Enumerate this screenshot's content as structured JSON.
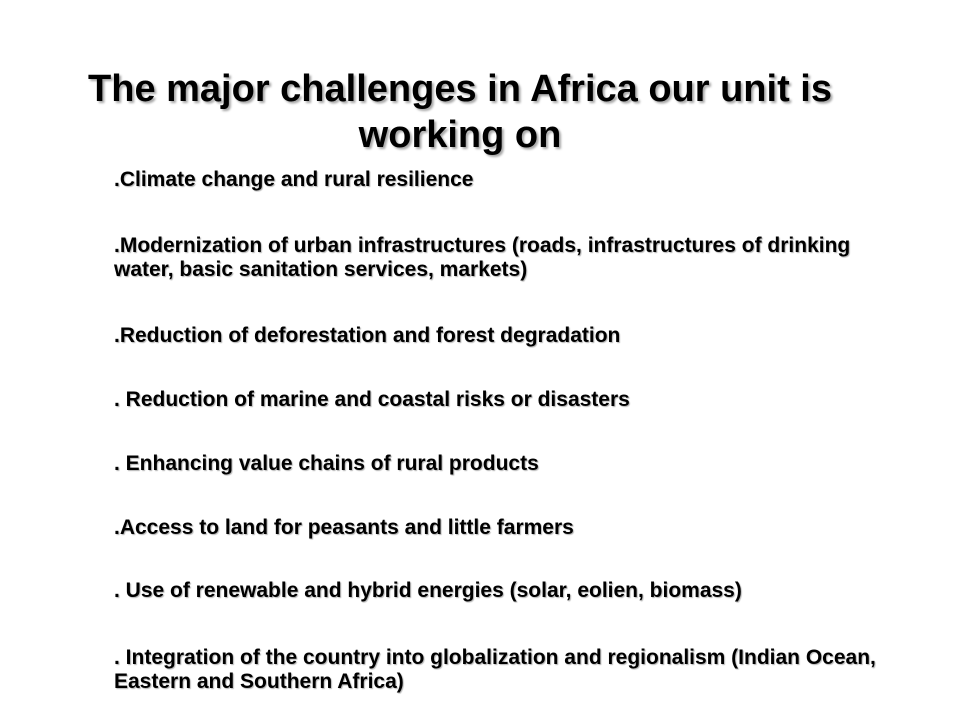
{
  "slide": {
    "title": "The major challenges in Africa our unit is working on",
    "items": [
      ".Climate change and rural resilience",
      ".Modernization of urban infrastructures (roads, infrastructures of drinking water, basic sanitation services, markets)",
      ".Reduction of deforestation and forest degradation",
      ". Reduction of marine and coastal risks or disasters",
      ". Enhancing value chains of rural products",
      ".Access to land for peasants and little farmers",
      ". Use of renewable  and hybrid energies (solar, eolien, biomass)",
      ". Integration of the country into globalization and regionalism (Indian Ocean, Eastern and Southern Africa)"
    ]
  }
}
